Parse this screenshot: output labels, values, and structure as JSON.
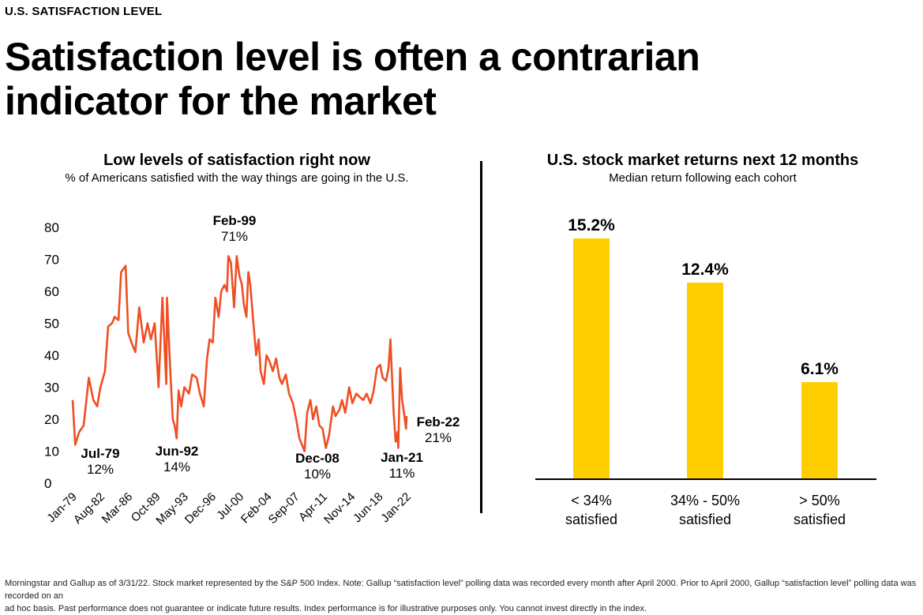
{
  "eyebrow": "U.S. SATISFACTION LEVEL",
  "headline": "Satisfaction level is often a contrarian indicator for the market",
  "left_panel": {
    "title": "Low levels of satisfaction right now",
    "subtitle": "% of Americans satisfied with the way things are going in the U.S."
  },
  "right_panel": {
    "title": "U.S. stock market returns next 12 months",
    "subtitle": "Median return following each cohort"
  },
  "footnote_line1": "Morningstar and Gallup as of 3/31/22. Stock market represented by the S&P 500 Index. Note: Gallup “satisfaction level” polling data was recorded every month after April 2000. Prior to April 2000, Gallup “satisfaction level” polling data was recorded on an",
  "footnote_line2": "ad hoc basis. Past performance does not guarantee or indicate future results. Index performance is for illustrative purposes only. You cannot invest directly in the index.",
  "colors": {
    "line": "#f04e23",
    "bar": "#ffce00",
    "axis": "#000000"
  },
  "chart_data": [
    {
      "type": "line",
      "title": "Low levels of satisfaction right now",
      "subtitle": "% of Americans satisfied with the way things are going in the U.S.",
      "x_tick_labels": [
        "Jan-79",
        "Aug-82",
        "Mar-86",
        "Oct-89",
        "May-93",
        "Dec-96",
        "Jul-00",
        "Feb-04",
        "Sep-07",
        "Apr-11",
        "Nov-14",
        "Jun-18",
        "Jan-22"
      ],
      "y_ticks": [
        0,
        10,
        20,
        30,
        40,
        50,
        60,
        70,
        80
      ],
      "ylim": [
        0,
        80
      ],
      "xlim": [
        "1979-01",
        "2022-02"
      ],
      "grid": false,
      "series": [
        {
          "x": [
            "1979-01",
            "1979-05",
            "1979-11",
            "1980-06",
            "1981-02",
            "1981-09",
            "1982-03",
            "1982-08",
            "1983-03",
            "1983-08",
            "1984-02",
            "1984-06",
            "1984-12",
            "1985-04",
            "1985-11",
            "1986-03",
            "1986-08",
            "1987-02",
            "1987-08",
            "1988-03",
            "1988-09",
            "1989-02",
            "1989-08",
            "1990-02",
            "1990-08",
            "1991-02",
            "1991-03",
            "1991-08",
            "1991-12",
            "1992-03",
            "1992-06",
            "1992-09",
            "1993-01",
            "1993-06",
            "1994-01",
            "1994-06",
            "1995-01",
            "1995-06",
            "1995-12",
            "1996-05",
            "1996-09",
            "1997-02",
            "1997-06",
            "1997-11",
            "1998-03",
            "1998-08",
            "1998-12",
            "1999-02",
            "1999-06",
            "1999-11",
            "2000-03",
            "2000-07",
            "2000-11",
            "2001-02",
            "2001-06",
            "2001-09",
            "2001-12",
            "2002-04",
            "2002-09",
            "2003-01",
            "2003-04",
            "2003-09",
            "2004-01",
            "2004-06",
            "2004-11",
            "2005-04",
            "2005-09",
            "2006-01",
            "2006-07",
            "2006-12",
            "2007-06",
            "2007-11",
            "2008-04",
            "2008-08",
            "2008-12",
            "2009-04",
            "2009-09",
            "2010-01",
            "2010-06",
            "2010-11",
            "2011-04",
            "2011-09",
            "2012-02",
            "2012-08",
            "2012-12",
            "2013-06",
            "2013-10",
            "2014-03",
            "2014-09",
            "2015-02",
            "2015-08",
            "2016-01",
            "2016-07",
            "2016-12",
            "2017-06",
            "2017-11",
            "2018-04",
            "2018-09",
            "2019-01",
            "2019-06",
            "2019-10",
            "2020-01",
            "2020-03",
            "2020-06",
            "2020-09",
            "2020-12",
            "2021-01",
            "2021-04",
            "2021-07",
            "2021-10",
            "2022-01",
            "2022-02"
          ],
          "values": [
            26,
            12,
            16,
            18,
            33,
            26,
            24,
            30,
            35,
            49,
            50,
            52,
            51,
            66,
            68,
            47,
            44,
            41,
            55,
            44,
            50,
            45,
            50,
            30,
            58,
            31,
            58,
            36,
            20,
            18,
            14,
            29,
            24,
            30,
            28,
            34,
            33,
            28,
            24,
            39,
            45,
            44,
            58,
            52,
            60,
            62,
            60,
            71,
            69,
            55,
            71,
            65,
            62,
            56,
            52,
            66,
            62,
            52,
            40,
            45,
            35,
            31,
            40,
            38,
            35,
            39,
            33,
            31,
            34,
            28,
            25,
            20,
            14,
            12,
            10,
            22,
            26,
            20,
            24,
            18,
            17,
            11,
            15,
            24,
            21,
            23,
            26,
            22,
            30,
            25,
            28,
            27,
            26,
            28,
            25,
            29,
            36,
            37,
            33,
            32,
            36,
            45,
            35,
            22,
            13,
            16,
            11,
            36,
            26,
            22,
            17,
            21
          ]
        }
      ],
      "annotations": [
        {
          "label": "Jul-79",
          "value": "12%"
        },
        {
          "label": "Jun-92",
          "value": "14%"
        },
        {
          "label": "Feb-99",
          "value": "71%"
        },
        {
          "label": "Dec-08",
          "value": "10%"
        },
        {
          "label": "Jan-21",
          "value": "11%"
        },
        {
          "label": "Feb-22",
          "value": "21%"
        }
      ]
    },
    {
      "type": "bar",
      "title": "U.S. stock market returns next 12 months",
      "subtitle": "Median return following each cohort",
      "categories": [
        "< 34% satisfied",
        "34% - 50% satisfied",
        "> 50% satisfied"
      ],
      "values": [
        15.2,
        12.4,
        6.1
      ],
      "value_labels": [
        "15.2%",
        "12.4%",
        "6.1%"
      ],
      "ylim": [
        0,
        20
      ],
      "grid": false
    }
  ]
}
